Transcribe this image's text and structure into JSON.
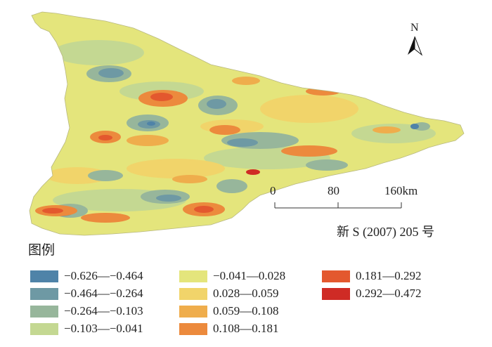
{
  "legend": {
    "title": "图例",
    "items": [
      {
        "label": "−0.626—−0.464",
        "color": "#4f83a8"
      },
      {
        "label": "−0.464—−0.264",
        "color": "#6e99a4"
      },
      {
        "label": "−0.264—−0.103",
        "color": "#97b69b"
      },
      {
        "label": "−0.103—−0.041",
        "color": "#c4d892"
      },
      {
        "label": "−0.041—0.028",
        "color": "#e4e57c"
      },
      {
        "label": "0.028—0.059",
        "color": "#f1d46a"
      },
      {
        "label": "0.059—0.108",
        "color": "#efad4c"
      },
      {
        "label": "0.108—0.181",
        "color": "#ec8a3d"
      },
      {
        "label": "0.181—0.292",
        "color": "#e3582e"
      },
      {
        "label": "0.292—0.472",
        "color": "#cf2b25"
      }
    ]
  },
  "scale_bar": {
    "ticks": [
      "0",
      "80",
      "160km"
    ]
  },
  "north_arrow": {
    "label": "N",
    "icon": "north-arrow-icon"
  },
  "map_number": "新 S (2007) 205 号"
}
